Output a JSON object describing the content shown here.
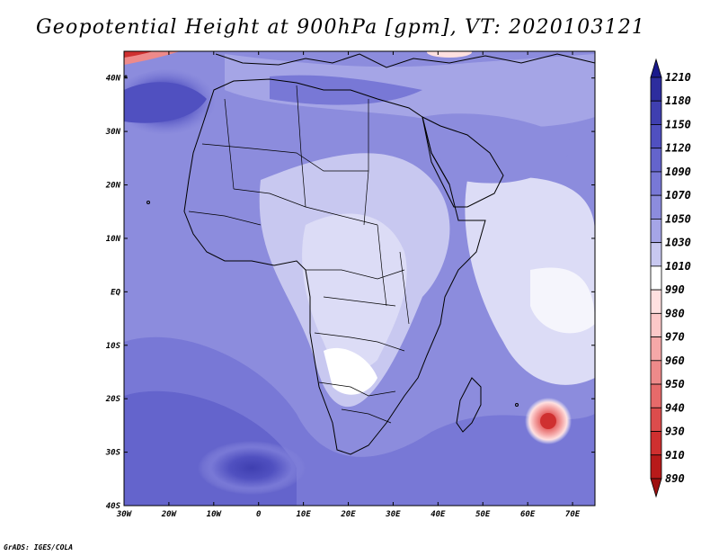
{
  "title": "Geopotential Height at 900hPa [gpm], VT: 2020103121",
  "footer": "GrADS: IGES/COLA",
  "map": {
    "projection": "latlon",
    "lon_range": [
      -30,
      75
    ],
    "lat_range": [
      -40,
      45
    ],
    "region": "Africa",
    "lon_ticks": [
      "30W",
      "20W",
      "10W",
      "0",
      "10E",
      "20E",
      "30E",
      "40E",
      "50E",
      "60E",
      "70E"
    ],
    "lat_ticks": [
      "40S",
      "30S",
      "20S",
      "10S",
      "EQ",
      "10N",
      "20N",
      "30N",
      "40N"
    ],
    "features": [
      "coastlines",
      "country-borders"
    ],
    "highlights": [
      {
        "name": "low-center-indian-ocean",
        "lon": 64.5,
        "lat": -24.5,
        "value": "~900"
      },
      {
        "name": "high-center-south-atlantic",
        "lon": -2,
        "lat": -32,
        "value": "~1150"
      },
      {
        "name": "high-north-atlantic",
        "lon": -20,
        "lat": 33,
        "value": "~1140"
      }
    ]
  },
  "colorbar": {
    "labels": [
      "1210",
      "1180",
      "1150",
      "1120",
      "1090",
      "1070",
      "1050",
      "1030",
      "1010",
      "990",
      "980",
      "970",
      "960",
      "950",
      "940",
      "930",
      "910",
      "890"
    ],
    "colors": [
      "#1a1a8c",
      "#2d2d9e",
      "#3f3fb0",
      "#5050c0",
      "#6464cc",
      "#7878d6",
      "#8c8cdd",
      "#a5a5e6",
      "#c8c8f0",
      "#ffffff",
      "#ffe0e0",
      "#fcc8c8",
      "#f5a8a8",
      "#ee8a8a",
      "#e66a6a",
      "#dc4c4c",
      "#cf3030",
      "#b81a1a",
      "#9e1010"
    ]
  }
}
